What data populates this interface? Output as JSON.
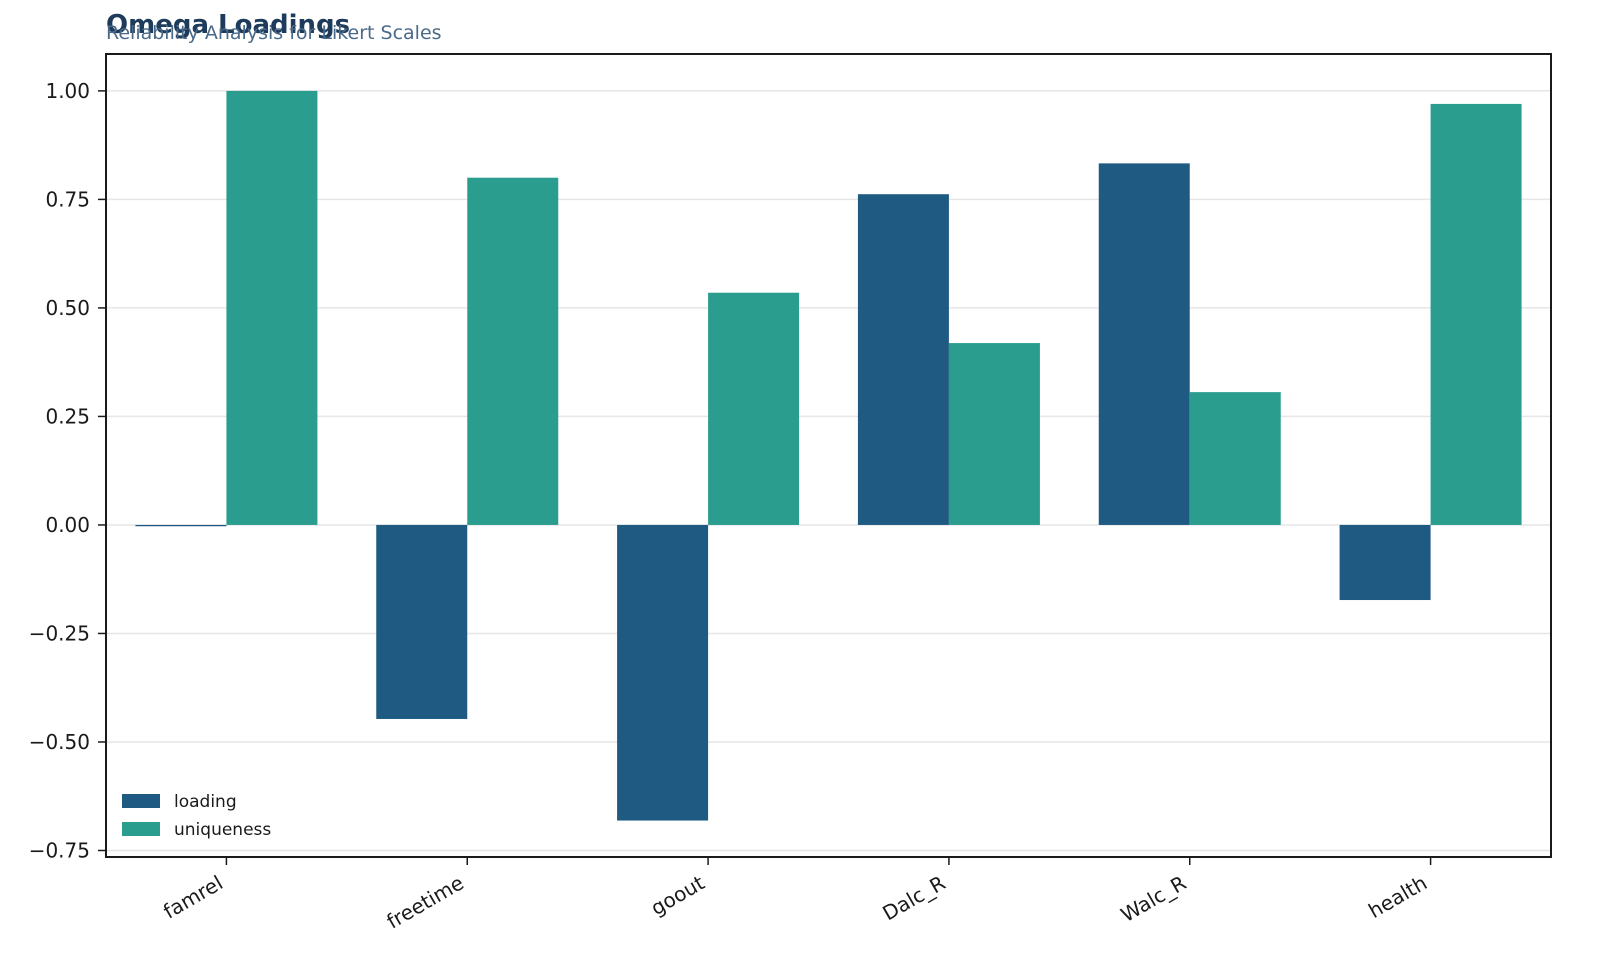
{
  "chart_data": {
    "type": "bar",
    "title": "Omega Loadings",
    "subtitle": "Reliability Analysis for Likert Scales",
    "xlabel": "",
    "ylabel": "",
    "categories": [
      "famrel",
      "freetime",
      "goout",
      "Dalc_R",
      "Walc_R",
      "health"
    ],
    "series": [
      {
        "name": "loading",
        "color": "#1f5a82",
        "values": [
          -0.003,
          -0.447,
          -0.681,
          0.762,
          0.833,
          -0.173
        ]
      },
      {
        "name": "uniqueness",
        "color": "#2a9d8f",
        "values": [
          1.0,
          0.8,
          0.535,
          0.419,
          0.306,
          0.97
        ]
      }
    ],
    "ylim": [
      -0.765,
      1.085
    ],
    "yticks": [
      -0.75,
      -0.5,
      -0.25,
      0.0,
      0.25,
      0.5,
      0.75,
      1.0
    ],
    "ytick_labels": [
      "−0.75",
      "−0.50",
      "−0.25",
      "0.00",
      "0.25",
      "0.50",
      "0.75",
      "1.00"
    ],
    "grid": "horizontal",
    "legend_position": "lower-left"
  }
}
